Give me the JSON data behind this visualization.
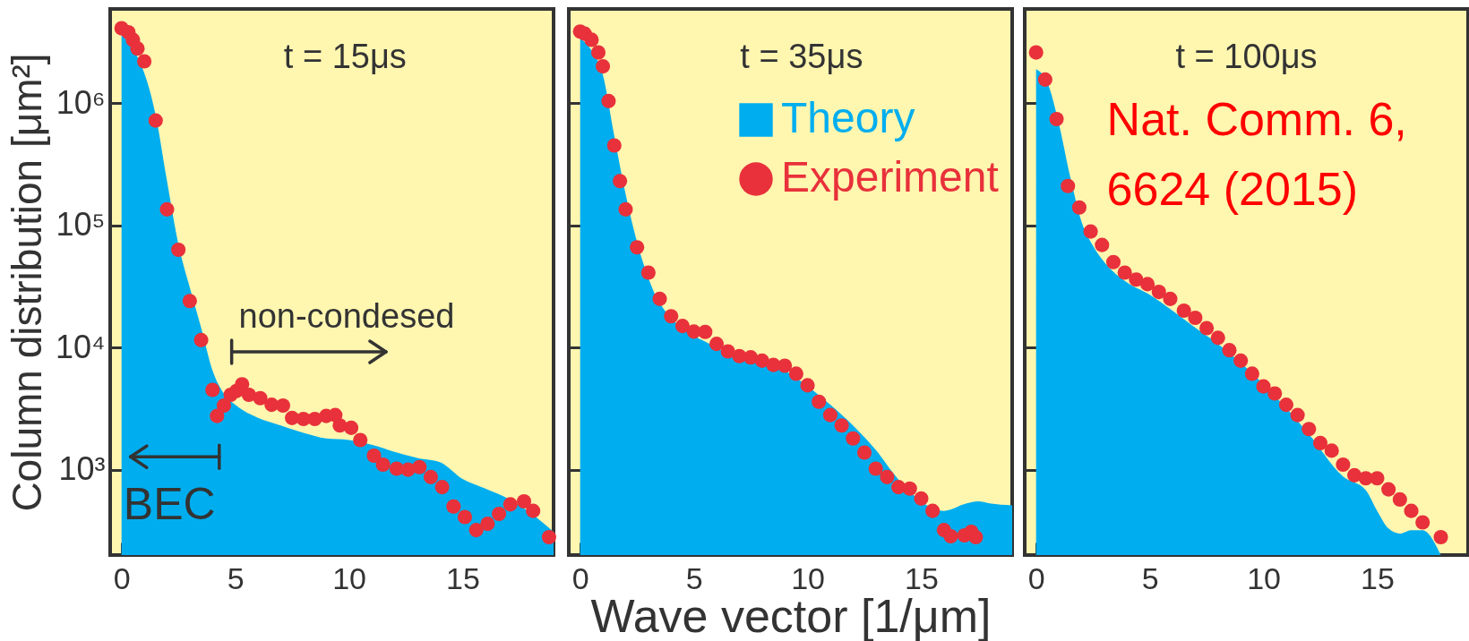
{
  "chart_data": [
    {
      "type": "area",
      "ylabel": "Column distribution [μm²]",
      "log": true,
      "grid": false,
      "tick_labels": "xy",
      "xlim": [
        -0.5,
        19
      ],
      "xticks": [
        0,
        5,
        10,
        15
      ],
      "ylim": [
        200,
        5900000
      ],
      "yticks": [
        {
          "value": 1000,
          "label": "10³"
        },
        {
          "value": 10000,
          "label": "10⁴"
        },
        {
          "value": 100000,
          "label": "10⁵"
        },
        {
          "value": 1000000,
          "label": "10⁶"
        }
      ],
      "annotations": [
        "t = 15μs",
        "non-condesed",
        "BEC"
      ],
      "series": [
        {
          "color": "#00aeef",
          "x": [
            0,
            1.5,
            2,
            2.5,
            3,
            3.5,
            4,
            4.5,
            5,
            6,
            7,
            8,
            9,
            10,
            11,
            12,
            13,
            14,
            15,
            16,
            17,
            18,
            19
          ],
          "values": [
            3700000,
            800000,
            230000,
            70000,
            31000,
            14500,
            6500,
            4200,
            3400,
            2650,
            2300,
            2000,
            1800,
            1750,
            1600,
            1400,
            1250,
            1150,
            840,
            700,
            580,
            440,
            310
          ]
        },
        {
          "type": "scatter",
          "marker": "circle",
          "color": "#e8313a",
          "x": [
            0,
            0.3,
            0.5,
            0.7,
            1.0,
            1.5,
            2.0,
            2.5,
            3.0,
            3.5,
            4.0,
            4.2,
            4.5,
            4.8,
            5.05,
            5.3,
            5.6,
            6.1,
            6.6,
            7.1,
            7.5,
            8.0,
            8.5,
            9.0,
            9.4,
            9.6,
            10.1,
            10.5,
            11.1,
            11.5,
            12.1,
            12.6,
            13.1,
            13.6,
            14.1,
            14.6,
            15.1,
            15.6,
            16.1,
            16.6,
            17.1,
            17.7,
            18.1,
            18.8
          ],
          "values": [
            4100000,
            3800000,
            3300000,
            2800000,
            2200000,
            720000,
            135000,
            63000,
            24000,
            11500,
            4500,
            2750,
            3350,
            4100,
            4400,
            5000,
            4100,
            3850,
            3400,
            3350,
            2650,
            2600,
            2600,
            2750,
            2800,
            2300,
            2200,
            1750,
            1300,
            1100,
            1020,
            1000,
            1050,
            870,
            720,
            500,
            410,
            320,
            360,
            435,
            520,
            550,
            460,
            280
          ]
        }
      ]
    },
    {
      "type": "area",
      "xlabel": "Wave vector [1/μm]",
      "log": true,
      "grid": false,
      "tick_labels": "x",
      "legend": "top right",
      "xlim": [
        -0.5,
        19
      ],
      "xticks": [
        0,
        5,
        10,
        15
      ],
      "ylim": [
        200,
        5900000
      ],
      "yticks": [
        {
          "value": 1000,
          "label": null
        },
        {
          "value": 10000,
          "label": null
        },
        {
          "value": 100000,
          "label": null
        },
        {
          "value": 1000000,
          "label": null
        }
      ],
      "annotations": [
        "t = 35μs"
      ],
      "series": [
        {
          "name": "Theory",
          "color": "#00aeef",
          "x": [
            0,
            0.5,
            1,
            1.5,
            2,
            2.5,
            3,
            3.5,
            6,
            9,
            11,
            12,
            13,
            14,
            16,
            17,
            17.5,
            18,
            19
          ],
          "values": [
            3400000,
            2700000,
            1700000,
            540000,
            180000,
            73000,
            37000,
            23000,
            10000,
            6500,
            3400,
            2300,
            1450,
            830,
            460,
            530,
            550,
            530,
            510
          ]
        },
        {
          "type": "scatter",
          "marker": "circle",
          "name": "Experiment",
          "color": "#e8313a",
          "x": [
            0,
            0.2,
            0.5,
            0.8,
            1.0,
            1.25,
            1.5,
            1.75,
            2.0,
            2.5,
            3.0,
            3.5,
            4.0,
            4.5,
            5.0,
            5.5,
            6.0,
            6.5,
            7.0,
            7.5,
            8.0,
            8.5,
            9.0,
            9.5,
            10.0,
            10.5,
            11.0,
            11.5,
            12.0,
            12.5,
            13.0,
            13.5,
            14.0,
            14.5,
            15.0,
            15.5,
            16.0,
            16.3,
            16.9,
            17.2,
            17.4
          ],
          "values": [
            3850000,
            3700000,
            3300000,
            2600000,
            2000000,
            1040000,
            450000,
            230000,
            135000,
            66000,
            41000,
            25000,
            18000,
            15000,
            13500,
            13400,
            10700,
            9300,
            8500,
            8300,
            7800,
            7200,
            7100,
            6100,
            4900,
            3600,
            2800,
            2300,
            1800,
            1380,
            1020,
            870,
            720,
            700,
            580,
            460,
            320,
            285,
            290,
            310,
            280
          ]
        }
      ]
    },
    {
      "type": "area",
      "log": true,
      "grid": false,
      "tick_labels": "x",
      "xlim": [
        -0.5,
        19
      ],
      "xticks": [
        0,
        5,
        10,
        15
      ],
      "ylim": [
        200,
        5900000
      ],
      "yticks": [
        {
          "value": 1000,
          "label": null
        },
        {
          "value": 10000,
          "label": null
        },
        {
          "value": 100000,
          "label": null
        },
        {
          "value": 1000000,
          "label": null
        }
      ],
      "annotations": [
        "t = 100μs",
        "Nat. Comm. 6, 6624 (2015)"
      ],
      "series": [
        {
          "color": "#00aeef",
          "x": [
            0,
            0.5,
            1,
            1.5,
            2,
            2.5,
            3,
            4,
            5,
            6,
            7,
            8,
            11,
            12,
            13.5,
            14.5,
            15,
            15.5,
            16,
            16.5,
            17,
            17.8
          ],
          "values": [
            1900000,
            1470000,
            680000,
            250000,
            107000,
            68000,
            50000,
            34000,
            27000,
            20000,
            14500,
            10700,
            3200,
            1950,
            880,
            680,
            460,
            330,
            300,
            320,
            320,
            200
          ]
        },
        {
          "type": "scatter",
          "marker": "circle",
          "color": "#e8313a",
          "x": [
            0,
            0.4,
            0.9,
            1.4,
            1.9,
            2.4,
            2.9,
            3.4,
            3.9,
            4.4,
            4.9,
            5.4,
            5.9,
            6.5,
            7.0,
            7.5,
            8.0,
            8.5,
            9.0,
            9.5,
            10.0,
            10.5,
            11.0,
            11.5,
            12.0,
            12.5,
            13.0,
            13.5,
            14.0,
            14.5,
            15.0,
            15.5,
            16.0,
            16.5,
            17.0,
            17.8
          ],
          "values": [
            2600000,
            1560000,
            740000,
            210000,
            140000,
            89000,
            69000,
            50000,
            41000,
            36000,
            33000,
            28500,
            25000,
            20000,
            17500,
            14400,
            12000,
            9500,
            7800,
            6100,
            4800,
            4200,
            3400,
            2800,
            2150,
            1650,
            1430,
            1100,
            900,
            850,
            850,
            690,
            570,
            460,
            370,
            280
          ]
        }
      ]
    }
  ]
}
